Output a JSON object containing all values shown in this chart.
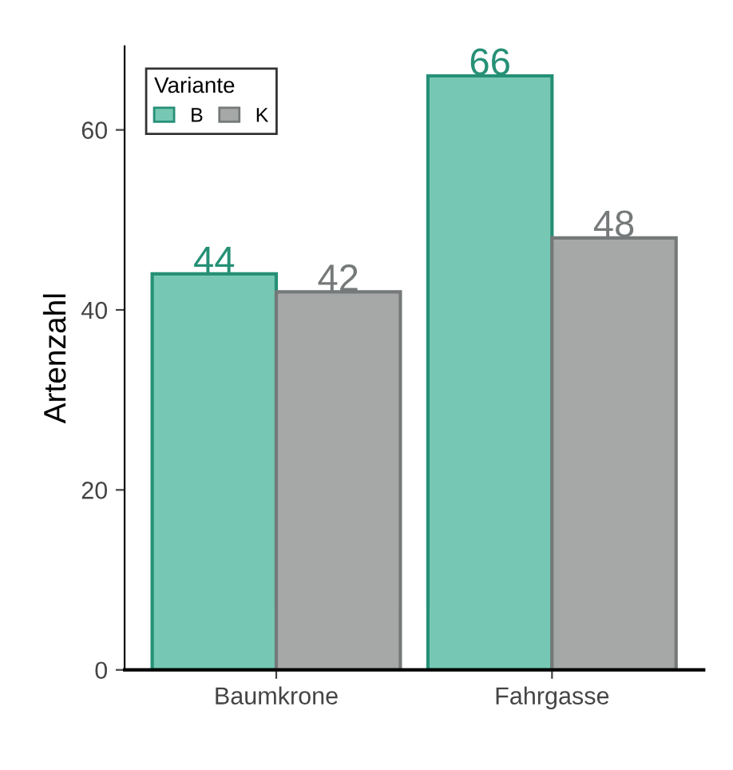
{
  "chart_data": {
    "type": "bar",
    "ylabel": "Artenzahl",
    "legend_title": "Variante",
    "categories": [
      "Baumkrone",
      "Fahrgasse"
    ],
    "series": [
      {
        "name": "B",
        "color": "#76c8b4",
        "values": [
          44,
          66
        ]
      },
      {
        "name": "K",
        "color": "#a6a8a8",
        "values": [
          42,
          48
        ]
      }
    ],
    "ylim": [
      0,
      69.3
    ],
    "yticks": [
      0,
      20,
      40,
      60
    ],
    "grid": false,
    "legend": "top left",
    "data_labels": true
  }
}
